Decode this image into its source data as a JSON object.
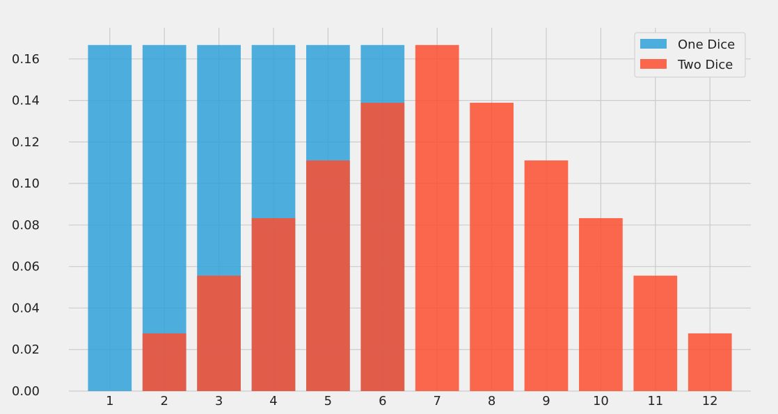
{
  "chart_data": {
    "type": "bar",
    "categories": [
      "1",
      "2",
      "3",
      "4",
      "5",
      "6",
      "7",
      "8",
      "9",
      "10",
      "11",
      "12"
    ],
    "x": [
      1,
      2,
      3,
      4,
      5,
      6,
      7,
      8,
      9,
      10,
      11,
      12
    ],
    "series": [
      {
        "name": "One Dice",
        "color": "#30a2da",
        "values": [
          0.1667,
          0.1667,
          0.1667,
          0.1667,
          0.1667,
          0.1667,
          null,
          null,
          null,
          null,
          null,
          null
        ]
      },
      {
        "name": "Two Dice",
        "color": "#fc4f30",
        "values": [
          null,
          0.0278,
          0.0556,
          0.0833,
          0.1111,
          0.1389,
          0.1667,
          0.1389,
          0.1111,
          0.0833,
          0.0556,
          0.0278
        ]
      }
    ],
    "ylim": [
      0,
      0.175
    ],
    "yticks": [
      "0.00",
      "0.02",
      "0.04",
      "0.06",
      "0.08",
      "0.10",
      "0.12",
      "0.14",
      "0.16"
    ],
    "grid": true,
    "legend_position": "top-right",
    "overlay": true
  }
}
